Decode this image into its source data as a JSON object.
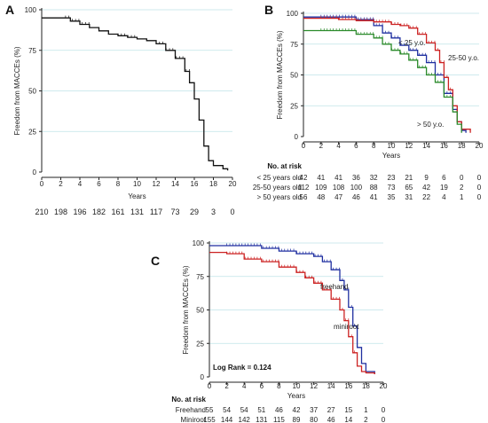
{
  "figure": {
    "panels": [
      {
        "letter": "A"
      },
      {
        "letter": "B"
      },
      {
        "letter": "C"
      }
    ]
  },
  "chart_data": [
    {
      "panel": "A",
      "type": "line",
      "subtype": "kaplan-meier",
      "ylabel": "Freedom from MACCEs (%)",
      "xlabel": "Years",
      "xlim": [
        0,
        20
      ],
      "ylim": [
        0,
        100
      ],
      "xticks": [
        0,
        2,
        4,
        6,
        8,
        10,
        12,
        14,
        16,
        18,
        20
      ],
      "yticks": [
        0,
        25,
        50,
        75,
        100
      ],
      "grid": "horizontal dotted at y ticks",
      "series": [
        {
          "color": "#111111",
          "points": [
            [
              0,
              95
            ],
            [
              3,
              93
            ],
            [
              4,
              91
            ],
            [
              5,
              89
            ],
            [
              6,
              87
            ],
            [
              7,
              85
            ],
            [
              8,
              84
            ],
            [
              9,
              83
            ],
            [
              10,
              82
            ],
            [
              11,
              81
            ],
            [
              12,
              79
            ],
            [
              13,
              75
            ],
            [
              14,
              70
            ],
            [
              15,
              62
            ],
            [
              15.5,
              55
            ],
            [
              16,
              45
            ],
            [
              16.5,
              32
            ],
            [
              17,
              16
            ],
            [
              17.5,
              7
            ],
            [
              18,
              4
            ],
            [
              19,
              2
            ],
            [
              19.5,
              1
            ]
          ],
          "censor_region": [
            [
              2.5,
              5
            ],
            [
              8,
              10
            ],
            [
              12,
              15.5
            ]
          ]
        }
      ],
      "at_risk": {
        "rows": [
          {
            "label": "",
            "values": [
              "210",
              "198",
              "196",
              "182",
              "161",
              "131",
              "117",
              "73",
              "29",
              "3",
              "0"
            ]
          }
        ]
      }
    },
    {
      "panel": "B",
      "type": "line",
      "subtype": "kaplan-meier",
      "ylabel": "Freedom from MACCEs (%)",
      "xlabel": "Years",
      "xlim": [
        0,
        20
      ],
      "ylim": [
        0,
        100
      ],
      "xticks": [
        0,
        2,
        4,
        6,
        8,
        10,
        12,
        14,
        16,
        18,
        20
      ],
      "yticks": [
        0,
        25,
        50,
        75,
        100
      ],
      "series": [
        {
          "name": "< 25 y.o.",
          "color": "#1f2fa0",
          "points": [
            [
              0,
              97
            ],
            [
              4,
              97
            ],
            [
              6,
              95
            ],
            [
              8,
              90
            ],
            [
              9,
              84
            ],
            [
              10,
              80
            ],
            [
              11,
              74
            ],
            [
              12,
              70
            ],
            [
              13,
              66
            ],
            [
              14,
              60
            ],
            [
              15,
              50
            ],
            [
              16,
              35
            ],
            [
              17,
              22
            ],
            [
              17.5,
              12
            ],
            [
              18,
              5
            ],
            [
              18.5,
              3
            ]
          ]
        },
        {
          "name": "25-50 y.o.",
          "color": "#cc2222",
          "points": [
            [
              0,
              96
            ],
            [
              4,
              95
            ],
            [
              6,
              94
            ],
            [
              8,
              93
            ],
            [
              10,
              91
            ],
            [
              11,
              90
            ],
            [
              12,
              88
            ],
            [
              13,
              83
            ],
            [
              14,
              76
            ],
            [
              15,
              70
            ],
            [
              15.5,
              60
            ],
            [
              16,
              48
            ],
            [
              16.5,
              38
            ],
            [
              17,
              25
            ],
            [
              17.5,
              12
            ],
            [
              18,
              6
            ],
            [
              19,
              3
            ]
          ]
        },
        {
          "name": "> 50 y.o.",
          "color": "#2a8a2a",
          "points": [
            [
              0,
              86
            ],
            [
              4,
              86
            ],
            [
              6,
              83
            ],
            [
              8,
              80
            ],
            [
              9,
              75
            ],
            [
              10,
              70
            ],
            [
              11,
              67
            ],
            [
              12,
              62
            ],
            [
              13,
              56
            ],
            [
              14,
              50
            ],
            [
              15,
              44
            ],
            [
              16,
              32
            ],
            [
              17,
              20
            ],
            [
              17.5,
              10
            ],
            [
              18,
              3
            ]
          ]
        }
      ],
      "at_risk": {
        "title": "No. at risk",
        "rows": [
          {
            "label": "< 25 years old",
            "values": [
              "42",
              "41",
              "41",
              "36",
              "32",
              "23",
              "21",
              "9",
              "6",
              "0",
              "0"
            ]
          },
          {
            "label": "25-50 years old",
            "values": [
              "112",
              "109",
              "108",
              "100",
              "88",
              "73",
              "65",
              "42",
              "19",
              "2",
              "0"
            ]
          },
          {
            "label": "> 50 years old",
            "values": [
              "56",
              "48",
              "47",
              "46",
              "41",
              "35",
              "31",
              "22",
              "4",
              "1",
              "0"
            ]
          }
        ]
      }
    },
    {
      "panel": "C",
      "type": "line",
      "subtype": "kaplan-meier",
      "ylabel": "Freedom from MACCEs (%)",
      "xlabel": "Years",
      "xlim": [
        0,
        20
      ],
      "ylim": [
        0,
        100
      ],
      "xticks": [
        0,
        2,
        4,
        6,
        8,
        10,
        12,
        14,
        16,
        18,
        20
      ],
      "yticks": [
        0,
        25,
        50,
        75,
        100
      ],
      "annotation": "Log Rank = 0.124",
      "series": [
        {
          "name": "freehand",
          "color": "#1f2fa0",
          "points": [
            [
              0,
              98
            ],
            [
              4,
              98
            ],
            [
              6,
              96
            ],
            [
              8,
              94
            ],
            [
              10,
              92
            ],
            [
              12,
              90
            ],
            [
              13,
              86
            ],
            [
              14,
              80
            ],
            [
              15,
              72
            ],
            [
              15.5,
              65
            ],
            [
              16,
              52
            ],
            [
              16.5,
              38
            ],
            [
              17,
              22
            ],
            [
              17.5,
              10
            ],
            [
              18,
              4
            ],
            [
              19,
              2
            ]
          ]
        },
        {
          "name": "miniroot",
          "color": "#cc2222",
          "points": [
            [
              0,
              93
            ],
            [
              2,
              92
            ],
            [
              4,
              88
            ],
            [
              6,
              86
            ],
            [
              8,
              82
            ],
            [
              10,
              78
            ],
            [
              11,
              74
            ],
            [
              12,
              70
            ],
            [
              13,
              65
            ],
            [
              14,
              58
            ],
            [
              15,
              50
            ],
            [
              15.5,
              42
            ],
            [
              16,
              30
            ],
            [
              16.5,
              18
            ],
            [
              17,
              8
            ],
            [
              17.5,
              4
            ],
            [
              18,
              3
            ],
            [
              19,
              2
            ]
          ]
        }
      ],
      "at_risk": {
        "title": "No. at risk",
        "rows": [
          {
            "label": "Freehand",
            "values": [
              "55",
              "54",
              "54",
              "51",
              "46",
              "42",
              "37",
              "27",
              "15",
              "1",
              "0"
            ]
          },
          {
            "label": "Miniroot",
            "values": [
              "155",
              "144",
              "142",
              "131",
              "115",
              "89",
              "80",
              "46",
              "14",
              "2",
              "0"
            ]
          }
        ]
      }
    }
  ]
}
